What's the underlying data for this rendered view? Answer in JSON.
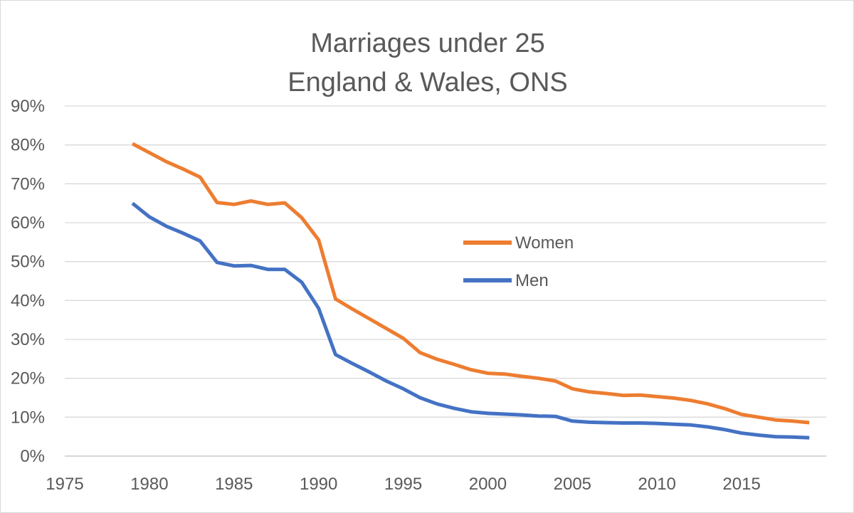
{
  "chart_data": {
    "type": "line",
    "title": [
      "Marriages under 25",
      "England & Wales, ONS"
    ],
    "xlabel": "",
    "ylabel": "",
    "xlim": [
      1975,
      2020
    ],
    "ylim": [
      0,
      0.9
    ],
    "x_ticks": [
      1975,
      1980,
      1985,
      1990,
      1995,
      2000,
      2005,
      2010,
      2015
    ],
    "x_tick_labels": [
      "1975",
      "1980",
      "1985",
      "1990",
      "1995",
      "2000",
      "2005",
      "2010",
      "2015"
    ],
    "y_ticks": [
      0,
      0.1,
      0.2,
      0.3,
      0.4,
      0.5,
      0.6,
      0.7,
      0.8,
      0.9
    ],
    "y_tick_labels": [
      "0%",
      "10%",
      "20%",
      "30%",
      "40%",
      "50%",
      "60%",
      "70%",
      "80%",
      "90%"
    ],
    "grid": "horizontal",
    "legend": "inside-right",
    "x": [
      1979,
      1980,
      1981,
      1982,
      1983,
      1984,
      1985,
      1986,
      1987,
      1988,
      1989,
      1990,
      1991,
      1992,
      1993,
      1994,
      1995,
      1996,
      1997,
      1998,
      1999,
      2000,
      2001,
      2002,
      2003,
      2004,
      2005,
      2006,
      2007,
      2008,
      2009,
      2010,
      2011,
      2012,
      2013,
      2014,
      2015,
      2016,
      2017,
      2018,
      2019
    ],
    "series": [
      {
        "name": "Women",
        "color": "#ed7d31",
        "values": [
          0.803,
          0.78,
          0.757,
          0.738,
          0.717,
          0.652,
          0.647,
          0.656,
          0.647,
          0.651,
          0.613,
          0.556,
          0.404,
          0.378,
          0.353,
          0.328,
          0.303,
          0.266,
          0.249,
          0.236,
          0.222,
          0.213,
          0.211,
          0.205,
          0.2,
          0.193,
          0.173,
          0.165,
          0.161,
          0.156,
          0.157,
          0.153,
          0.149,
          0.143,
          0.134,
          0.122,
          0.107,
          0.1,
          0.093,
          0.09,
          0.086
        ]
      },
      {
        "name": "Men",
        "color": "#4472c4",
        "values": [
          0.65,
          0.615,
          0.591,
          0.573,
          0.553,
          0.498,
          0.489,
          0.49,
          0.48,
          0.48,
          0.447,
          0.38,
          0.261,
          0.238,
          0.216,
          0.193,
          0.173,
          0.15,
          0.134,
          0.123,
          0.114,
          0.11,
          0.108,
          0.106,
          0.103,
          0.102,
          0.09,
          0.087,
          0.086,
          0.085,
          0.085,
          0.084,
          0.082,
          0.08,
          0.075,
          0.068,
          0.059,
          0.054,
          0.05,
          0.049,
          0.047
        ]
      }
    ]
  }
}
